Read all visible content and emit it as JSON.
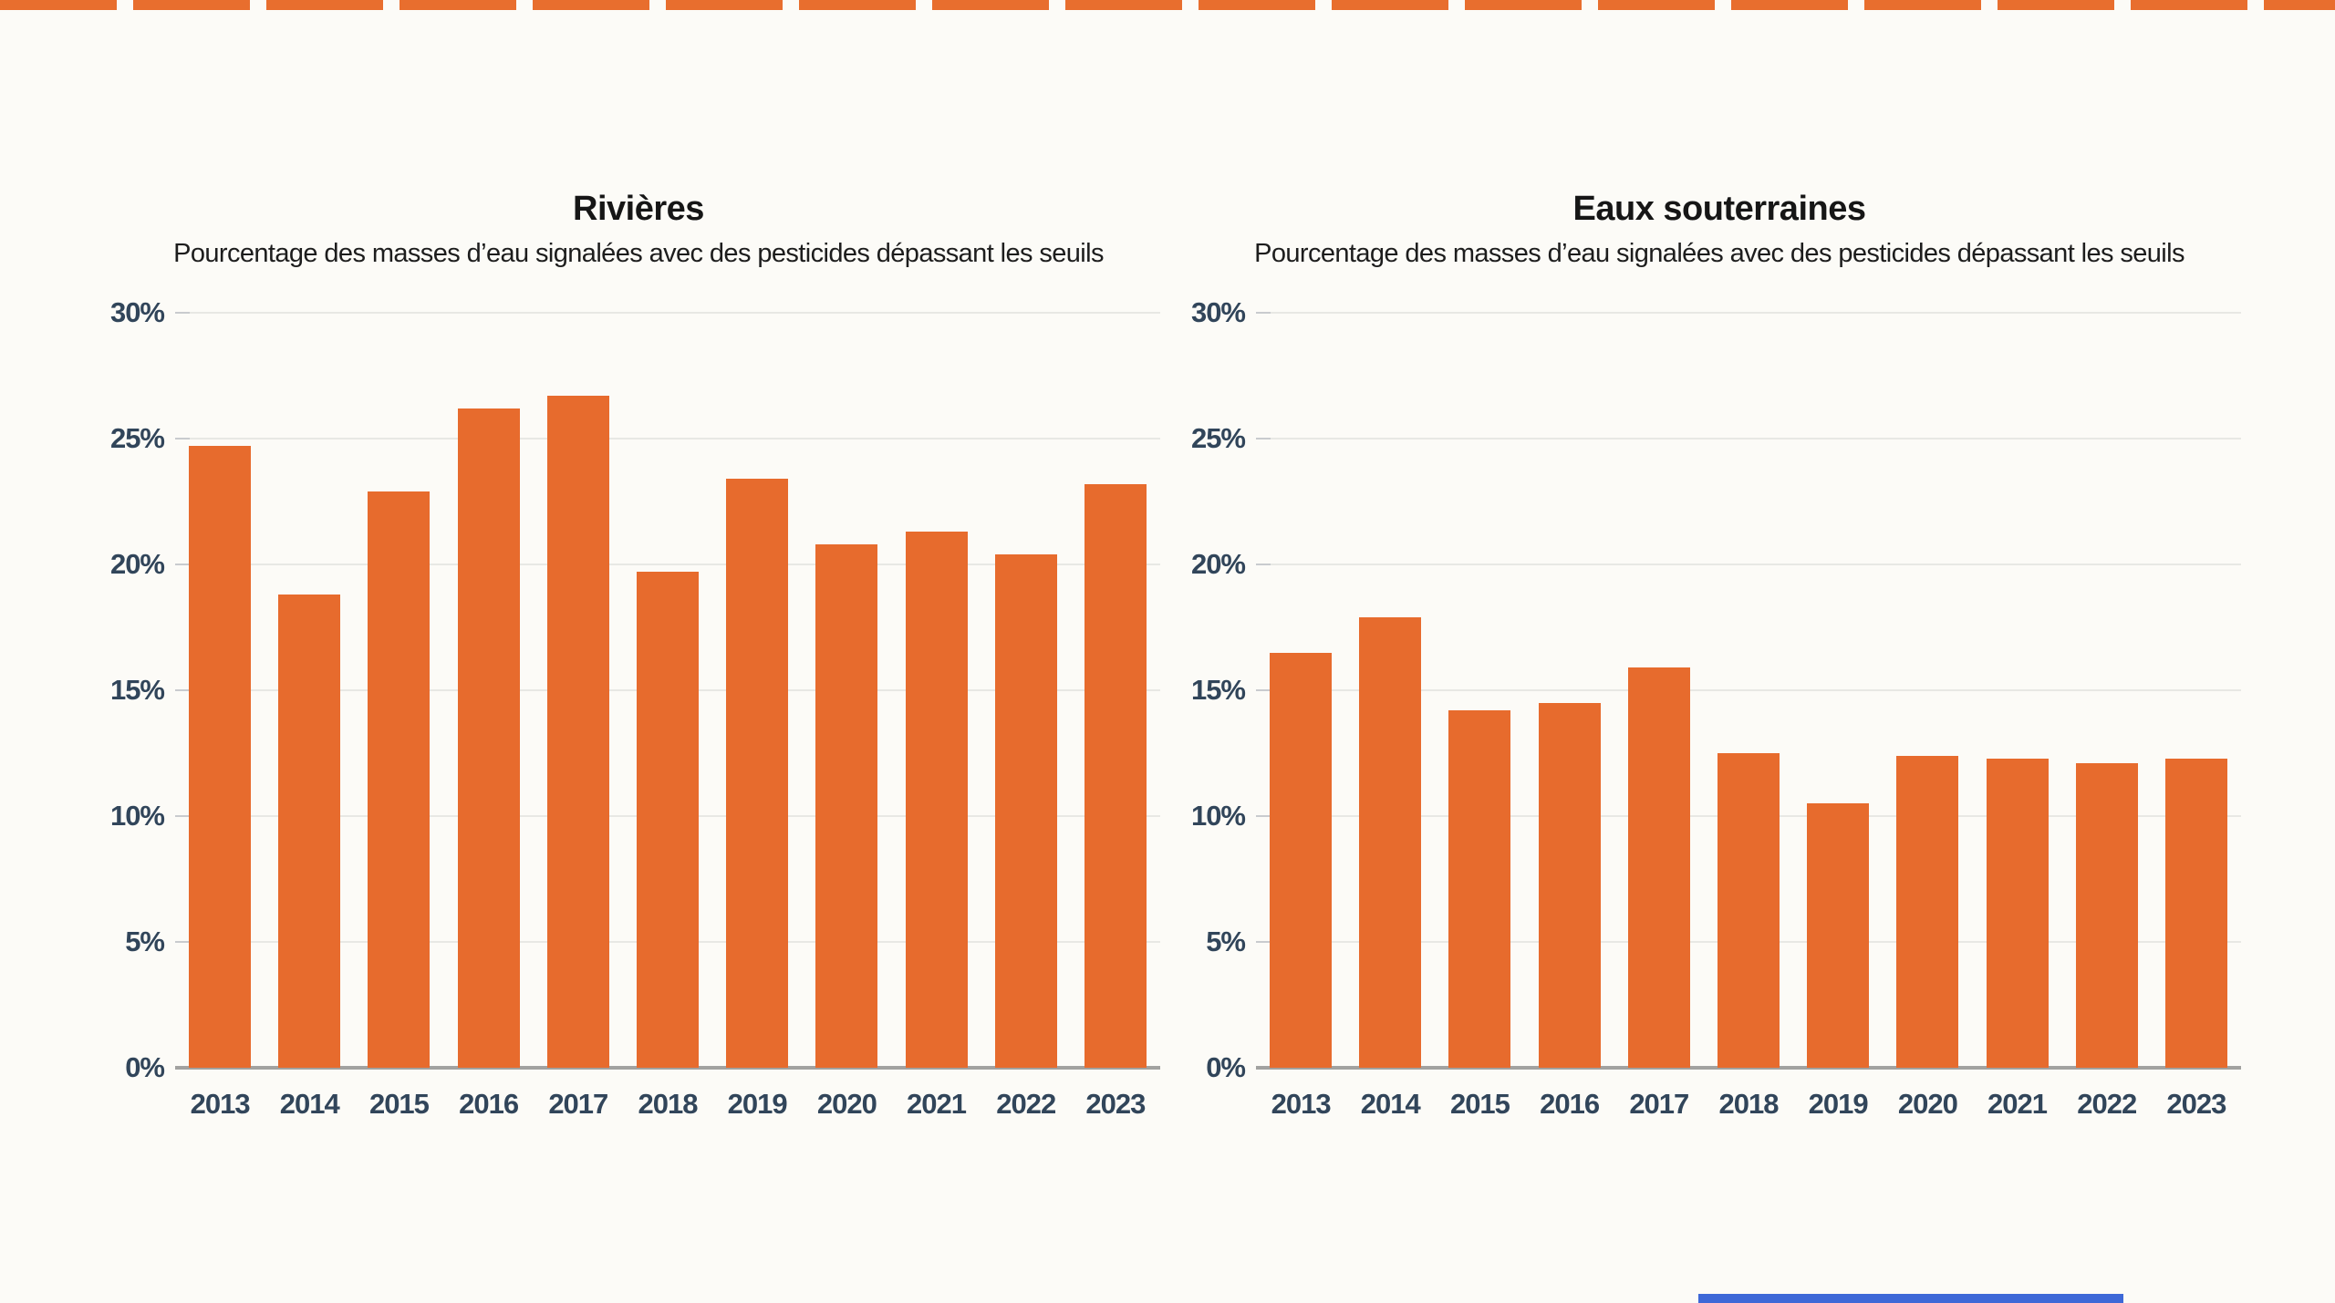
{
  "decorations": {
    "top_strip_color": "#e86e2e",
    "bottom_strip_color": "#3e68d7"
  },
  "chart_data": [
    {
      "type": "bar",
      "title": "Rivières",
      "subtitle": "Pourcentage des masses d’eau signalées avec des pesticides dépassant les seuils",
      "categories": [
        "2013",
        "2014",
        "2015",
        "2016",
        "2017",
        "2018",
        "2019",
        "2020",
        "2021",
        "2022",
        "2023"
      ],
      "values": [
        24.7,
        18.8,
        22.9,
        26.2,
        26.7,
        19.7,
        23.4,
        20.8,
        21.3,
        20.4,
        23.2
      ],
      "unit": "%",
      "xlabel": "",
      "ylabel": "",
      "ylim": [
        0,
        30
      ],
      "yticks": [
        0,
        5,
        10,
        15,
        20,
        25,
        30
      ],
      "grid": "horizontal",
      "legend": "none",
      "bar_color": "#e76b2d",
      "tick_label_color": "#31455a"
    },
    {
      "type": "bar",
      "title": "Eaux souterraines",
      "subtitle": "Pourcentage des masses d’eau signalées avec des pesticides dépassant les seuils",
      "categories": [
        "2013",
        "2014",
        "2015",
        "2016",
        "2017",
        "2018",
        "2019",
        "2020",
        "2021",
        "2022",
        "2023"
      ],
      "values": [
        16.5,
        17.9,
        14.2,
        14.5,
        15.9,
        12.5,
        10.5,
        12.4,
        12.3,
        12.1,
        12.3
      ],
      "unit": "%",
      "xlabel": "",
      "ylabel": "",
      "ylim": [
        0,
        30
      ],
      "yticks": [
        0,
        5,
        10,
        15,
        20,
        25,
        30
      ],
      "grid": "horizontal",
      "legend": "none",
      "bar_color": "#e76b2d",
      "tick_label_color": "#31455a"
    }
  ]
}
